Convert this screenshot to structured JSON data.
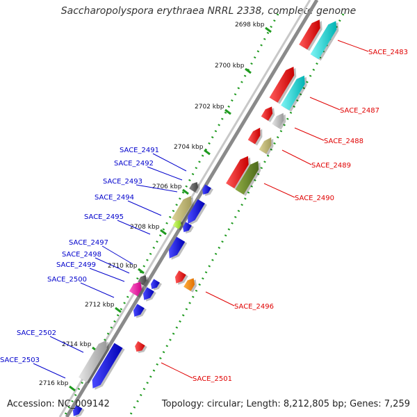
{
  "title": "Saccharopolyspora erythraea NRRL 2338, complete genome",
  "footer": {
    "accession": "Accession: NC_009142",
    "summary": "Topology: circular; Length: 8,212,805 bp; Genes: 7,259"
  },
  "colors": {
    "forward_label": "#e00000",
    "reverse_label": "#0000cc",
    "backbone": "#8a8a8a",
    "tick_dot": "#1f9a1f"
  },
  "ticks": [
    "2698 kbp",
    "2700 kbp",
    "2702 kbp",
    "2704 kbp",
    "2706 kbp",
    "2708 kbp",
    "2710 kbp",
    "2712 kbp",
    "2714 kbp",
    "2716 kbp"
  ],
  "forward_genes": [
    "SACE_2483",
    "SACE_2487",
    "SACE_2488",
    "SACE_2489",
    "SACE_2490",
    "SACE_2496",
    "SACE_2501"
  ],
  "reverse_genes": [
    "SACE_2491",
    "SACE_2492",
    "SACE_2493",
    "SACE_2494",
    "SACE_2495",
    "SACE_2497",
    "SACE_2498",
    "SACE_2499",
    "SACE_2500",
    "SACE_2502",
    "SACE_2503"
  ]
}
